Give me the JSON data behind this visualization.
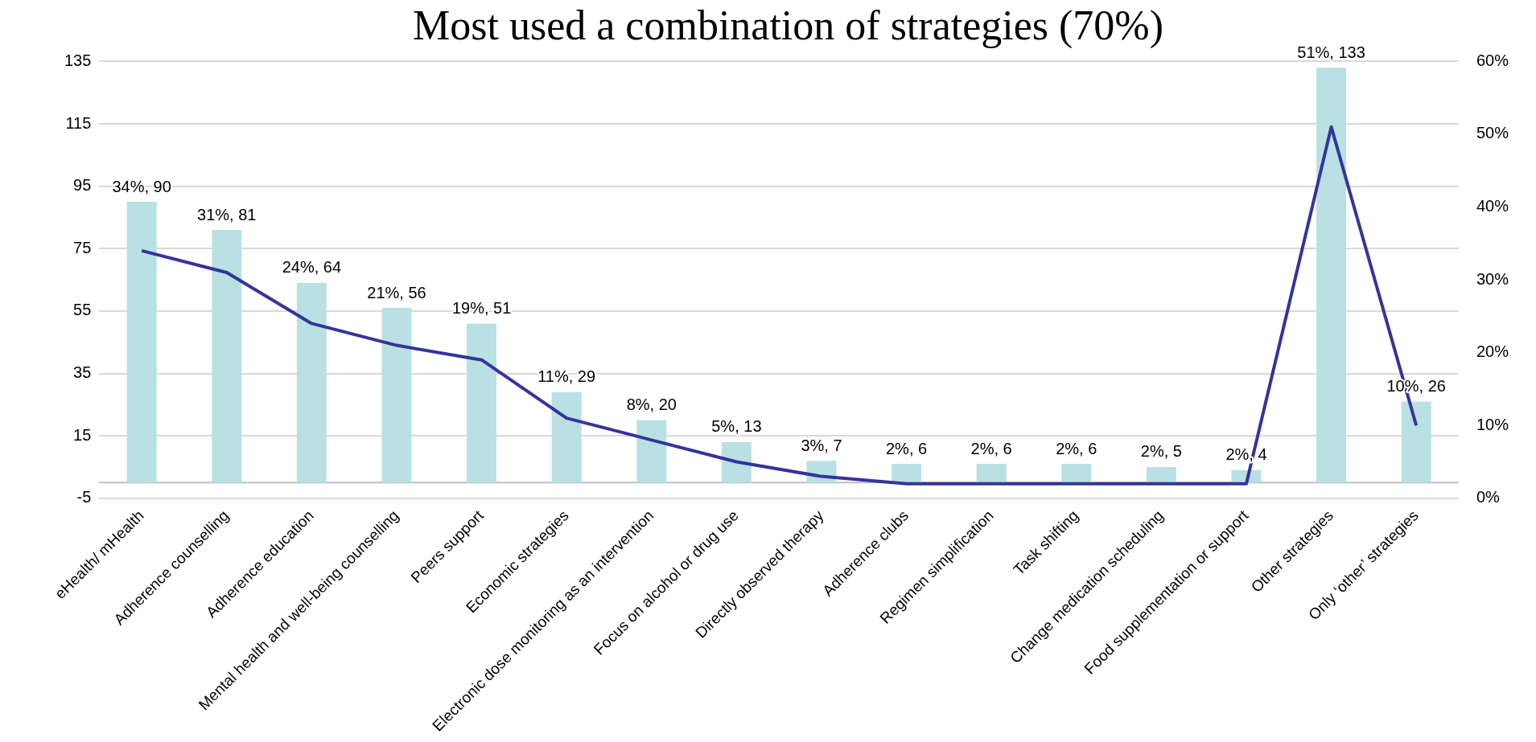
{
  "chart_data": {
    "type": "bar",
    "title": "Most used a combination of strategies (70%)",
    "categories": [
      "eHealth/ mHealth",
      "Adherence counselling",
      "Adherence education",
      "Mental health and well-being counselling",
      "Peers support",
      "Economic strategies",
      "Electronic dose monitoring as an intervention",
      "Focus on alcohol or drug use",
      "Directly observed therapy",
      "Adherence clubs",
      "Regimen simplification",
      "Task shifting",
      "Change medication scheduling",
      "Food supplementation or support",
      "Other strategies",
      "Only ‘other’ strategies"
    ],
    "series": [
      {
        "color": "#b9e0e3",
        "values": [
          90,
          81,
          64,
          56,
          51,
          29,
          20,
          13,
          7,
          6,
          6,
          6,
          5,
          4,
          133,
          26
        ],
        "value_labels": [
          "34%, 90",
          "31%, 81",
          "24%, 64",
          "21%, 56",
          "19%, 51",
          "11%, 29",
          "8%, 20",
          "5%, 13",
          "3%, 7",
          "2%, 6",
          "2%, 6",
          "2%, 6",
          "2%, 5",
          "2%, 4",
          "51%, 133",
          "10%, 26"
        ]
      },
      {
        "type": "line",
        "axis": "y2",
        "color": "#35349a",
        "values": [
          34,
          31,
          24,
          21,
          19,
          11,
          8,
          5,
          3,
          2,
          2,
          2,
          2,
          2,
          51,
          10
        ]
      }
    ],
    "ylim": [
      -5,
      135
    ],
    "yticks": [
      -5,
      15,
      35,
      55,
      75,
      95,
      115,
      135
    ],
    "y2lim": [
      0,
      60
    ],
    "y2ticks": [
      {
        "value": 0,
        "label": "0%"
      },
      {
        "value": 10,
        "label": "10%"
      },
      {
        "value": 20,
        "label": "20%"
      },
      {
        "value": 30,
        "label": "30%"
      },
      {
        "value": 40,
        "label": "40%"
      },
      {
        "value": 50,
        "label": "50%"
      },
      {
        "value": 60,
        "label": "60%"
      }
    ],
    "grid": "y",
    "legend": false,
    "marker": "none",
    "line_style": "solid"
  }
}
